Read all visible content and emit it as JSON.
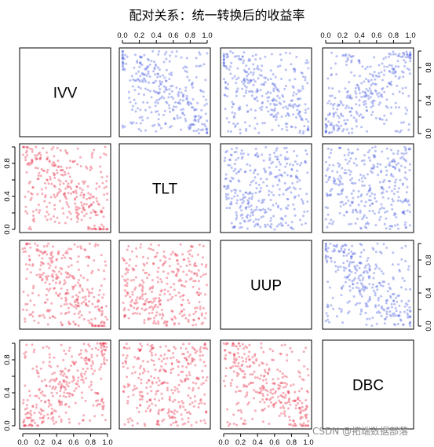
{
  "title": "配对关系：统一转换后的收益率",
  "watermark": "CSDN @拓端数据部落",
  "chart_data": {
    "type": "scatter",
    "variables": [
      "IVV",
      "TLT",
      "UUP",
      "DBC"
    ],
    "axis_range": [
      0,
      1
    ],
    "ticks": [
      0.0,
      0.2,
      0.4,
      0.6,
      0.8,
      1.0
    ],
    "tick_labels": [
      "0.0",
      "0.2",
      "0.4",
      "0.6",
      "0.8",
      "1.0"
    ],
    "upper_color": "#4f63e0",
    "lower_color": "#e8344e",
    "points_per_panel": 320,
    "pair_dependence": {
      "IVV-TLT": -0.45,
      "IVV-UUP": -0.4,
      "IVV-DBC": 0.45,
      "TLT-UUP": 0.0,
      "TLT-DBC": -0.05,
      "UUP-DBC": -0.4
    },
    "grid": false,
    "legend": "none"
  }
}
